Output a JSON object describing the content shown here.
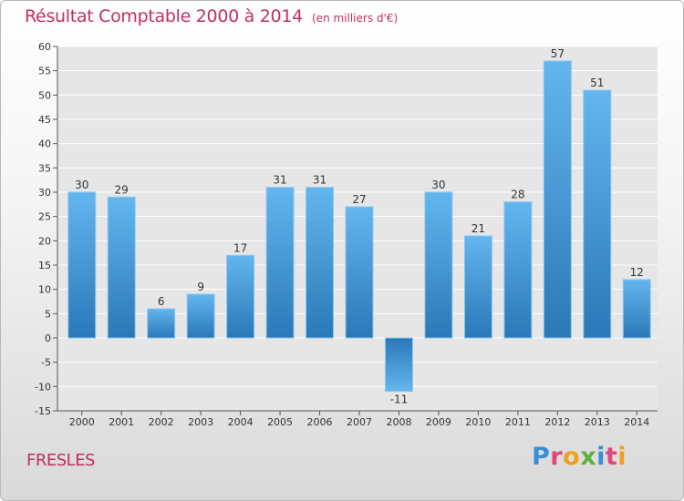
{
  "header": {
    "title": "Résultat Comptable 2000 à 2014",
    "subtitle": "(en milliers d'€)"
  },
  "footer": {
    "place": "FRESLES",
    "brand": "Proxiti",
    "brand_colors": [
      "#3a8fd8",
      "#e0457b",
      "#f0a020",
      "#5fb040",
      "#3a8fd8",
      "#e0457b",
      "#f0a020"
    ]
  },
  "colors": {
    "bar_light": "#63b6ee",
    "bar_dark": "#2a78b8",
    "accent_text": "#c0305a"
  },
  "chart_data": {
    "type": "bar",
    "categories": [
      "2000",
      "2001",
      "2002",
      "2003",
      "2004",
      "2005",
      "2006",
      "2007",
      "2008",
      "2009",
      "2010",
      "2011",
      "2012",
      "2013",
      "2014"
    ],
    "values": [
      30,
      29,
      6,
      9,
      17,
      31,
      31,
      27,
      -11,
      30,
      21,
      28,
      57,
      51,
      12
    ],
    "value_labels": [
      "30",
      "29",
      "6",
      "9",
      "17",
      "31",
      "31",
      "27",
      "-11",
      "30",
      "21",
      "28",
      "57",
      "51",
      "12"
    ],
    "ylim": [
      -15,
      60
    ],
    "yticks": [
      60,
      55,
      50,
      45,
      40,
      35,
      30,
      25,
      20,
      15,
      10,
      5,
      0,
      -5,
      -10,
      -15
    ],
    "ytick_labels": [
      "60",
      "55",
      "50",
      "45",
      "40",
      "35",
      "30",
      "25",
      "20",
      "15",
      "10",
      "5",
      "0",
      "-5",
      "-10",
      "-15"
    ],
    "grid": true,
    "legend": "none"
  }
}
